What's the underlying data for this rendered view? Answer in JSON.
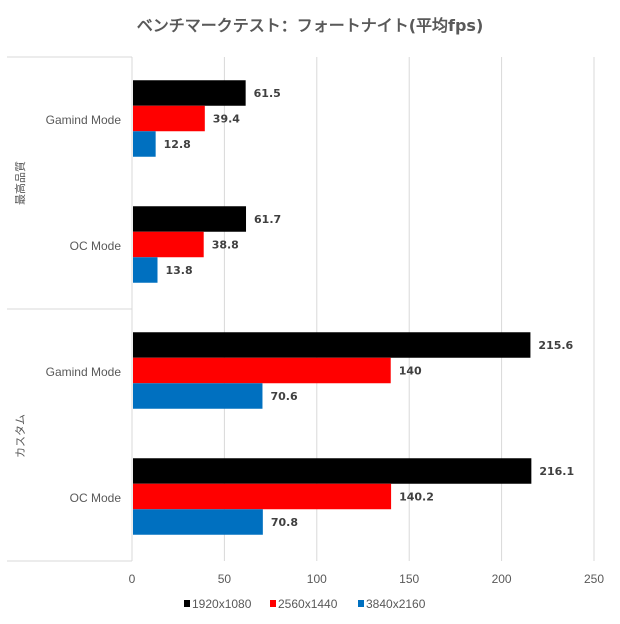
{
  "chart_data": {
    "type": "bar",
    "orientation": "horizontal",
    "title": "ベンチマークテスト：フォートナイト(平均fps)",
    "groups": [
      {
        "label": "最高品質",
        "categories": [
          "Gamind Mode",
          "OC Mode"
        ]
      },
      {
        "label": "カスタム",
        "categories": [
          "Gamind Mode",
          "OC Mode"
        ]
      }
    ],
    "series": [
      {
        "name": "1920x1080",
        "color": "#000000",
        "values": [
          61.5,
          61.7,
          215.6,
          216.1
        ]
      },
      {
        "name": "2560x1440",
        "color": "#ff0000",
        "values": [
          39.4,
          38.8,
          140,
          140.2
        ]
      },
      {
        "name": "3840x2160",
        "color": "#0070c0",
        "values": [
          12.8,
          13.8,
          70.6,
          70.8
        ]
      }
    ],
    "xlim": [
      0,
      250
    ],
    "xticks": [
      0,
      50,
      100,
      150,
      200,
      250
    ],
    "grid": true,
    "legend": "bottom",
    "data_labels": true
  }
}
